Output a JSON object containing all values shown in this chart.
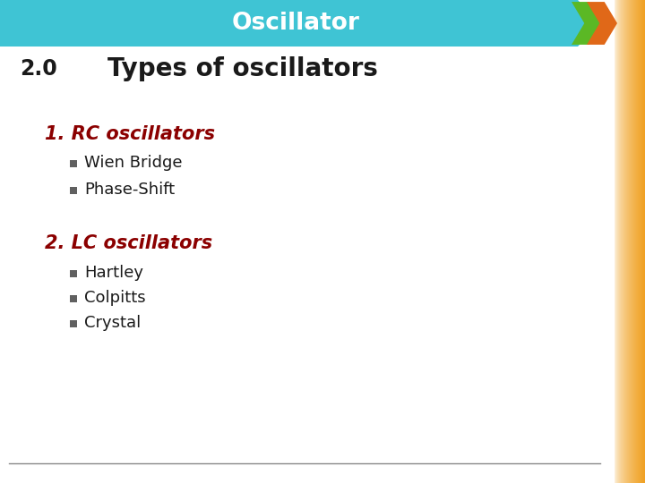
{
  "title": "Oscillator",
  "title_color": "#FFFFFF",
  "header_bg_color": "#3FC4D4",
  "slide_number": "2.0",
  "slide_number_color": "#1a1a1a",
  "main_title": "Types of oscillators",
  "main_title_color": "#1a1a1a",
  "section1_title": "1. RC oscillators",
  "section1_color": "#8B0000",
  "section1_bullets": [
    "Wien Bridge",
    "Phase-Shift"
  ],
  "section2_title": "2. LC oscillators",
  "section2_color": "#8B0000",
  "section2_bullets": [
    "Hartley",
    "Colpitts",
    "Crystal"
  ],
  "bullet_color": "#606060",
  "bullet_text_color": "#1a1a1a",
  "bg_color": "#FFFFFF",
  "right_strip_color": "#F0A020",
  "green_chevron_color": "#5BB825",
  "orange_chevron_color": "#E06818",
  "bottom_line_color": "#888888",
  "fig_width": 7.2,
  "fig_height": 5.4,
  "dpi": 100
}
